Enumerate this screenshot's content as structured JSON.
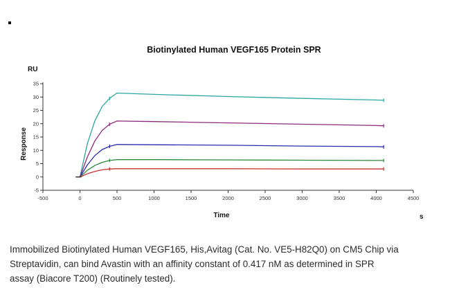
{
  "chart_data": {
    "type": "line",
    "title": "Biotinylated Human VEGF165 Protein SPR",
    "xlabel": "Time",
    "ylabel": "Response",
    "y_unit": "RU",
    "x_unit": "s",
    "xlim": [
      -500,
      4500
    ],
    "ylim": [
      -5,
      35
    ],
    "x_ticks": [
      -500,
      0,
      500,
      1000,
      1500,
      2000,
      2500,
      3000,
      3500,
      4000,
      4500
    ],
    "y_ticks": [
      -5,
      0,
      5,
      10,
      15,
      20,
      25,
      30,
      35
    ],
    "grid": false,
    "legend": "none",
    "series": [
      {
        "color": "#2aa6a0",
        "x": [
          -50,
          0,
          100,
          200,
          300,
          400,
          500,
          1000,
          2000,
          3000,
          4000,
          4100
        ],
        "values": [
          0,
          0,
          12.5,
          21.0,
          26.5,
          29.5,
          31.5,
          31.0,
          30.2,
          29.5,
          28.9,
          28.8
        ]
      },
      {
        "color": "#8a2a7a",
        "x": [
          -50,
          0,
          100,
          200,
          300,
          400,
          500,
          1000,
          2000,
          3000,
          4000,
          4100
        ],
        "values": [
          0,
          0,
          7.5,
          13.5,
          17.5,
          19.8,
          21.0,
          20.8,
          20.3,
          19.8,
          19.3,
          19.2
        ]
      },
      {
        "color": "#2a2ab0",
        "x": [
          -50,
          0,
          100,
          200,
          300,
          400,
          500,
          1000,
          2000,
          3000,
          4000,
          4100
        ],
        "values": [
          0,
          0,
          4.5,
          8.0,
          10.3,
          11.5,
          12.2,
          12.1,
          11.9,
          11.6,
          11.4,
          11.3
        ]
      },
      {
        "color": "#2a8a3a",
        "x": [
          -50,
          0,
          100,
          200,
          300,
          400,
          500,
          1000,
          2000,
          3000,
          4000,
          4100
        ],
        "values": [
          0,
          0,
          2.5,
          4.3,
          5.5,
          6.2,
          6.5,
          6.5,
          6.4,
          6.3,
          6.2,
          6.2
        ]
      },
      {
        "color": "#c83030",
        "x": [
          -50,
          0,
          100,
          200,
          300,
          400,
          500,
          1000,
          2000,
          3000,
          4000,
          4100
        ],
        "values": [
          0,
          0,
          1.2,
          2.1,
          2.7,
          3.0,
          3.1,
          3.1,
          3.1,
          3.0,
          3.0,
          3.0
        ]
      }
    ]
  },
  "caption": {
    "line1": "Immobilized Biotinylated Human VEGF165, His,Avitag (Cat. No. VE5-H82Q0) on CM5 Chip via",
    "line2": "Streptavidin, can bind Avastin with an affinity constant of 0.417 nM as determined in SPR",
    "line3": "assay (Biacore T200) (Routinely tested)."
  }
}
